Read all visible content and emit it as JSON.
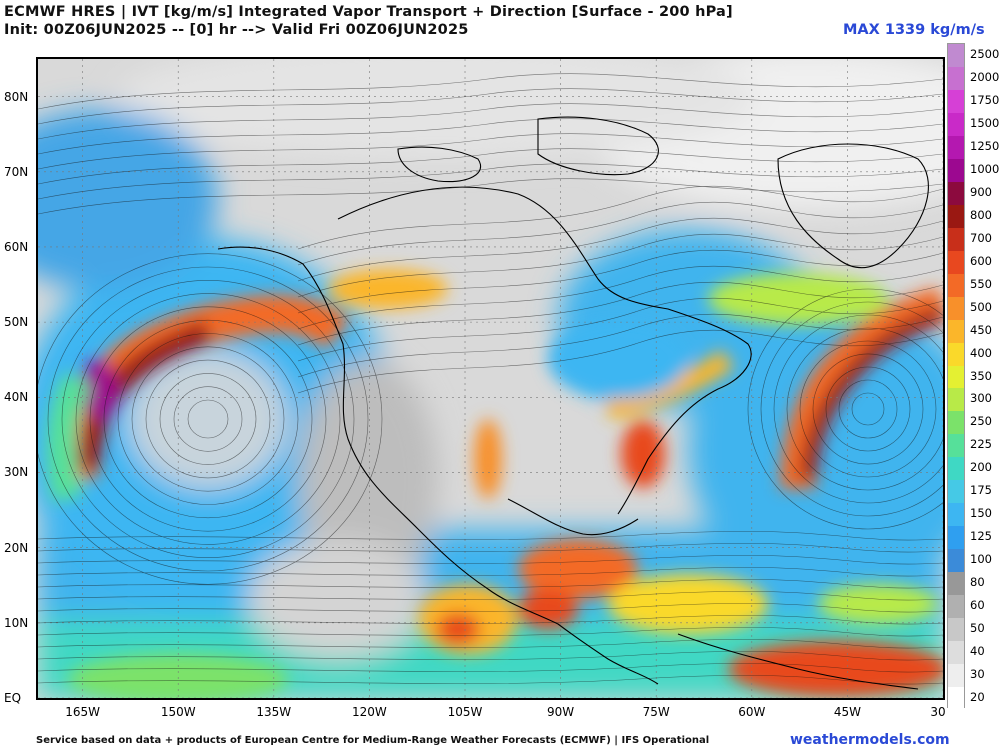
{
  "header": {
    "title_line1": "ECMWF HRES | IVT [kg/m/s] Integrated Vapor Transport + Direction [Surface - 200 hPa]",
    "title_line2": "Init: 00Z06JUN2025 -- [0] hr --> Valid Fri 00Z06JUN2025",
    "max_label": "MAX 1339 kg/m/s"
  },
  "map": {
    "lat_labels": [
      "80N",
      "70N",
      "60N",
      "50N",
      "40N",
      "30N",
      "20N",
      "10N",
      "EQ"
    ],
    "lat_values": [
      80,
      70,
      60,
      50,
      40,
      30,
      20,
      10,
      0
    ],
    "lon_labels": [
      "165W",
      "150W",
      "135W",
      "120W",
      "105W",
      "90W",
      "75W",
      "60W",
      "45W",
      "30"
    ],
    "lon_values": [
      -165,
      -150,
      -135,
      -120,
      -105,
      -90,
      -75,
      -60,
      -45,
      -30
    ],
    "lat_range": [
      0,
      85
    ],
    "lon_range": [
      -172,
      -30
    ],
    "max_ivt": 1339
  },
  "colorbar": {
    "levels": [
      "20",
      "30",
      "40",
      "50",
      "60",
      "80",
      "100",
      "125",
      "150",
      "175",
      "200",
      "225",
      "250",
      "300",
      "350",
      "400",
      "450",
      "500",
      "550",
      "600",
      "700",
      "800",
      "900",
      "1000",
      "1250",
      "1500",
      "1750",
      "2000",
      "2500"
    ],
    "colors": [
      "#ffffff",
      "#eeeeee",
      "#dddddd",
      "#c8c8c8",
      "#b0b0b0",
      "#989898",
      "#3b8bd9",
      "#2f9ff0",
      "#3db6f2",
      "#45c9e6",
      "#3fd8c4",
      "#56e09a",
      "#7be26a",
      "#b8ea48",
      "#e4f032",
      "#fad92a",
      "#fbb62a",
      "#f8902a",
      "#f36a26",
      "#e8481f",
      "#c82f1a",
      "#9a1812",
      "#8c0a3e",
      "#9c0890",
      "#b418b0",
      "#c92ac8",
      "#d640d6",
      "#c770d0",
      "#c08ad0"
    ]
  },
  "footer": {
    "credit": "Service based on data + products of European Centre for Medium-Range Weather Forecasts (ECMWF) | IFS Operational",
    "site": "weathermodels.com"
  }
}
